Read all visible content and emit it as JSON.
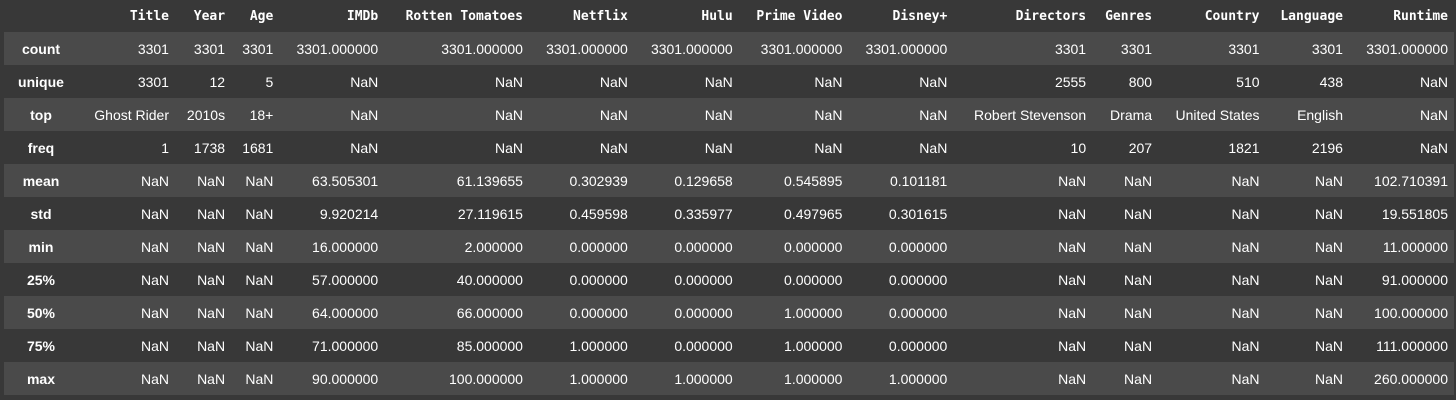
{
  "columns": [
    "Title",
    "Year",
    "Age",
    "IMDb",
    "Rotten Tomatoes",
    "Netflix",
    "Hulu",
    "Prime Video",
    "Disney+",
    "Directors",
    "Genres",
    "Country",
    "Language",
    "Runtime"
  ],
  "rows": [
    {
      "label": "count",
      "cells": [
        "3301",
        "3301",
        "3301",
        "3301.000000",
        "3301.000000",
        "3301.000000",
        "3301.000000",
        "3301.000000",
        "3301.000000",
        "3301",
        "3301",
        "3301",
        "3301",
        "3301.000000"
      ]
    },
    {
      "label": "unique",
      "cells": [
        "3301",
        "12",
        "5",
        "NaN",
        "NaN",
        "NaN",
        "NaN",
        "NaN",
        "NaN",
        "2555",
        "800",
        "510",
        "438",
        "NaN"
      ]
    },
    {
      "label": "top",
      "cells": [
        "Ghost Rider",
        "2010s",
        "18+",
        "NaN",
        "NaN",
        "NaN",
        "NaN",
        "NaN",
        "NaN",
        "Robert Stevenson",
        "Drama",
        "United States",
        "English",
        "NaN"
      ]
    },
    {
      "label": "freq",
      "cells": [
        "1",
        "1738",
        "1681",
        "NaN",
        "NaN",
        "NaN",
        "NaN",
        "NaN",
        "NaN",
        "10",
        "207",
        "1821",
        "2196",
        "NaN"
      ]
    },
    {
      "label": "mean",
      "cells": [
        "NaN",
        "NaN",
        "NaN",
        "63.505301",
        "61.139655",
        "0.302939",
        "0.129658",
        "0.545895",
        "0.101181",
        "NaN",
        "NaN",
        "NaN",
        "NaN",
        "102.710391"
      ]
    },
    {
      "label": "std",
      "cells": [
        "NaN",
        "NaN",
        "NaN",
        "9.920214",
        "27.119615",
        "0.459598",
        "0.335977",
        "0.497965",
        "0.301615",
        "NaN",
        "NaN",
        "NaN",
        "NaN",
        "19.551805"
      ]
    },
    {
      "label": "min",
      "cells": [
        "NaN",
        "NaN",
        "NaN",
        "16.000000",
        "2.000000",
        "0.000000",
        "0.000000",
        "0.000000",
        "0.000000",
        "NaN",
        "NaN",
        "NaN",
        "NaN",
        "11.000000"
      ]
    },
    {
      "label": "25%",
      "cells": [
        "NaN",
        "NaN",
        "NaN",
        "57.000000",
        "40.000000",
        "0.000000",
        "0.000000",
        "0.000000",
        "0.000000",
        "NaN",
        "NaN",
        "NaN",
        "NaN",
        "91.000000"
      ]
    },
    {
      "label": "50%",
      "cells": [
        "NaN",
        "NaN",
        "NaN",
        "64.000000",
        "66.000000",
        "0.000000",
        "0.000000",
        "1.000000",
        "0.000000",
        "NaN",
        "NaN",
        "NaN",
        "NaN",
        "100.000000"
      ]
    },
    {
      "label": "75%",
      "cells": [
        "NaN",
        "NaN",
        "NaN",
        "71.000000",
        "85.000000",
        "1.000000",
        "0.000000",
        "1.000000",
        "0.000000",
        "NaN",
        "NaN",
        "NaN",
        "NaN",
        "111.000000"
      ]
    },
    {
      "label": "max",
      "cells": [
        "NaN",
        "NaN",
        "NaN",
        "90.000000",
        "100.000000",
        "1.000000",
        "1.000000",
        "1.000000",
        "1.000000",
        "NaN",
        "NaN",
        "NaN",
        "NaN",
        "260.000000"
      ]
    }
  ]
}
